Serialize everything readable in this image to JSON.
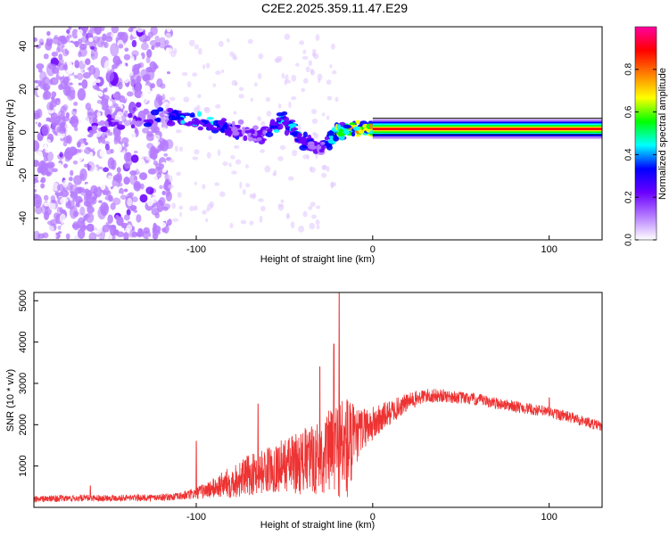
{
  "title": "C2E2.2025.359.11.47.E29",
  "chart_data": [
    {
      "type": "heatmap",
      "xlabel": "Height of straight line (km)",
      "ylabel": "Frequency (Hz)",
      "xlim": [
        -192,
        130
      ],
      "ylim": [
        -50,
        49
      ],
      "x_ticks": [
        -100,
        0,
        100
      ],
      "x_tick_labels": [
        "-100",
        "0",
        "100"
      ],
      "y_ticks": [
        -40,
        -20,
        0,
        20,
        40
      ],
      "y_tick_labels": [
        "-40",
        "-20",
        "0",
        "20",
        "40"
      ],
      "colorbar": {
        "label": "Normalized spectral amplitude",
        "range": [
          0,
          1
        ],
        "ticks": [
          0,
          0.2,
          0.4,
          0.6,
          0.8
        ],
        "tick_labels": [
          "0.0",
          "0.2",
          "0.4",
          "0.6",
          "0.8"
        ],
        "colors": [
          "#ffffff",
          "#b57bff",
          "#6a00ff",
          "#0000ff",
          "#00ffff",
          "#00ff00",
          "#ffff00",
          "#ff8000",
          "#ff0000",
          "#ff00a0"
        ]
      },
      "features": [
        {
          "name": "noise",
          "x_range": [
            -192,
            -115
          ],
          "freq_range": [
            -50,
            49
          ],
          "amplitude": 0.12
        },
        {
          "name": "signal-fragments",
          "points": [
            [
              -160,
              2,
              0.2
            ],
            [
              -115,
              8,
              0.3
            ],
            [
              -95,
              4,
              0.4
            ],
            [
              -80,
              2,
              0.3
            ],
            [
              -65,
              -2,
              0.2
            ],
            [
              -50,
              5,
              0.4
            ],
            [
              -40,
              -3,
              0.3
            ],
            [
              -30,
              -8,
              0.2
            ],
            [
              -20,
              0,
              0.5
            ],
            [
              -10,
              2,
              0.6
            ],
            [
              0,
              1,
              0.6
            ]
          ]
        },
        {
          "name": "carrier-line",
          "x_range": [
            0,
            130
          ],
          "freq": 1.5,
          "amplitude": 0.95
        }
      ]
    },
    {
      "type": "line",
      "xlabel": "Height of straight line (km)",
      "ylabel": "SNR (10 * v/v)",
      "xlim": [
        -192,
        130
      ],
      "ylim": [
        0,
        5200
      ],
      "x_ticks": [
        -100,
        0,
        100
      ],
      "x_tick_labels": [
        "-100",
        "0",
        "100"
      ],
      "y_ticks": [
        1000,
        2000,
        3000,
        4000,
        5000
      ],
      "y_tick_labels": [
        "1000",
        "2000",
        "3000",
        "4000",
        "5000"
      ],
      "color": "#ee3333",
      "series": [
        {
          "name": "SNR envelope",
          "x": [
            -192,
            -170,
            -150,
            -130,
            -110,
            -100,
            -90,
            -80,
            -70,
            -60,
            -50,
            -40,
            -30,
            -25,
            -20,
            -15,
            -12,
            -10,
            -5,
            0,
            10,
            20,
            30,
            40,
            50,
            60,
            70,
            80,
            90,
            100,
            110,
            120,
            130
          ],
          "center": [
            200,
            220,
            230,
            230,
            260,
            340,
            470,
            620,
            780,
            900,
            1030,
            1100,
            1200,
            1350,
            1450,
            1450,
            1500,
            1650,
            1950,
            2000,
            2300,
            2550,
            2700,
            2700,
            2650,
            2600,
            2520,
            2450,
            2370,
            2300,
            2200,
            2080,
            1950
          ],
          "spread": [
            80,
            80,
            80,
            80,
            90,
            150,
            250,
            400,
            500,
            550,
            650,
            800,
            900,
            1000,
            1200,
            1400,
            1200,
            700,
            500,
            450,
            300,
            220,
            180,
            160,
            150,
            150,
            140,
            140,
            140,
            140,
            140,
            130,
            130
          ],
          "peaks": [
            [
              -19,
              5200
            ],
            [
              -22,
              3950
            ],
            [
              -30,
              3400
            ],
            [
              -65,
              2500
            ],
            [
              -100,
              1600
            ],
            [
              -160,
              520
            ],
            [
              100,
              2650
            ]
          ]
        }
      ]
    }
  ]
}
